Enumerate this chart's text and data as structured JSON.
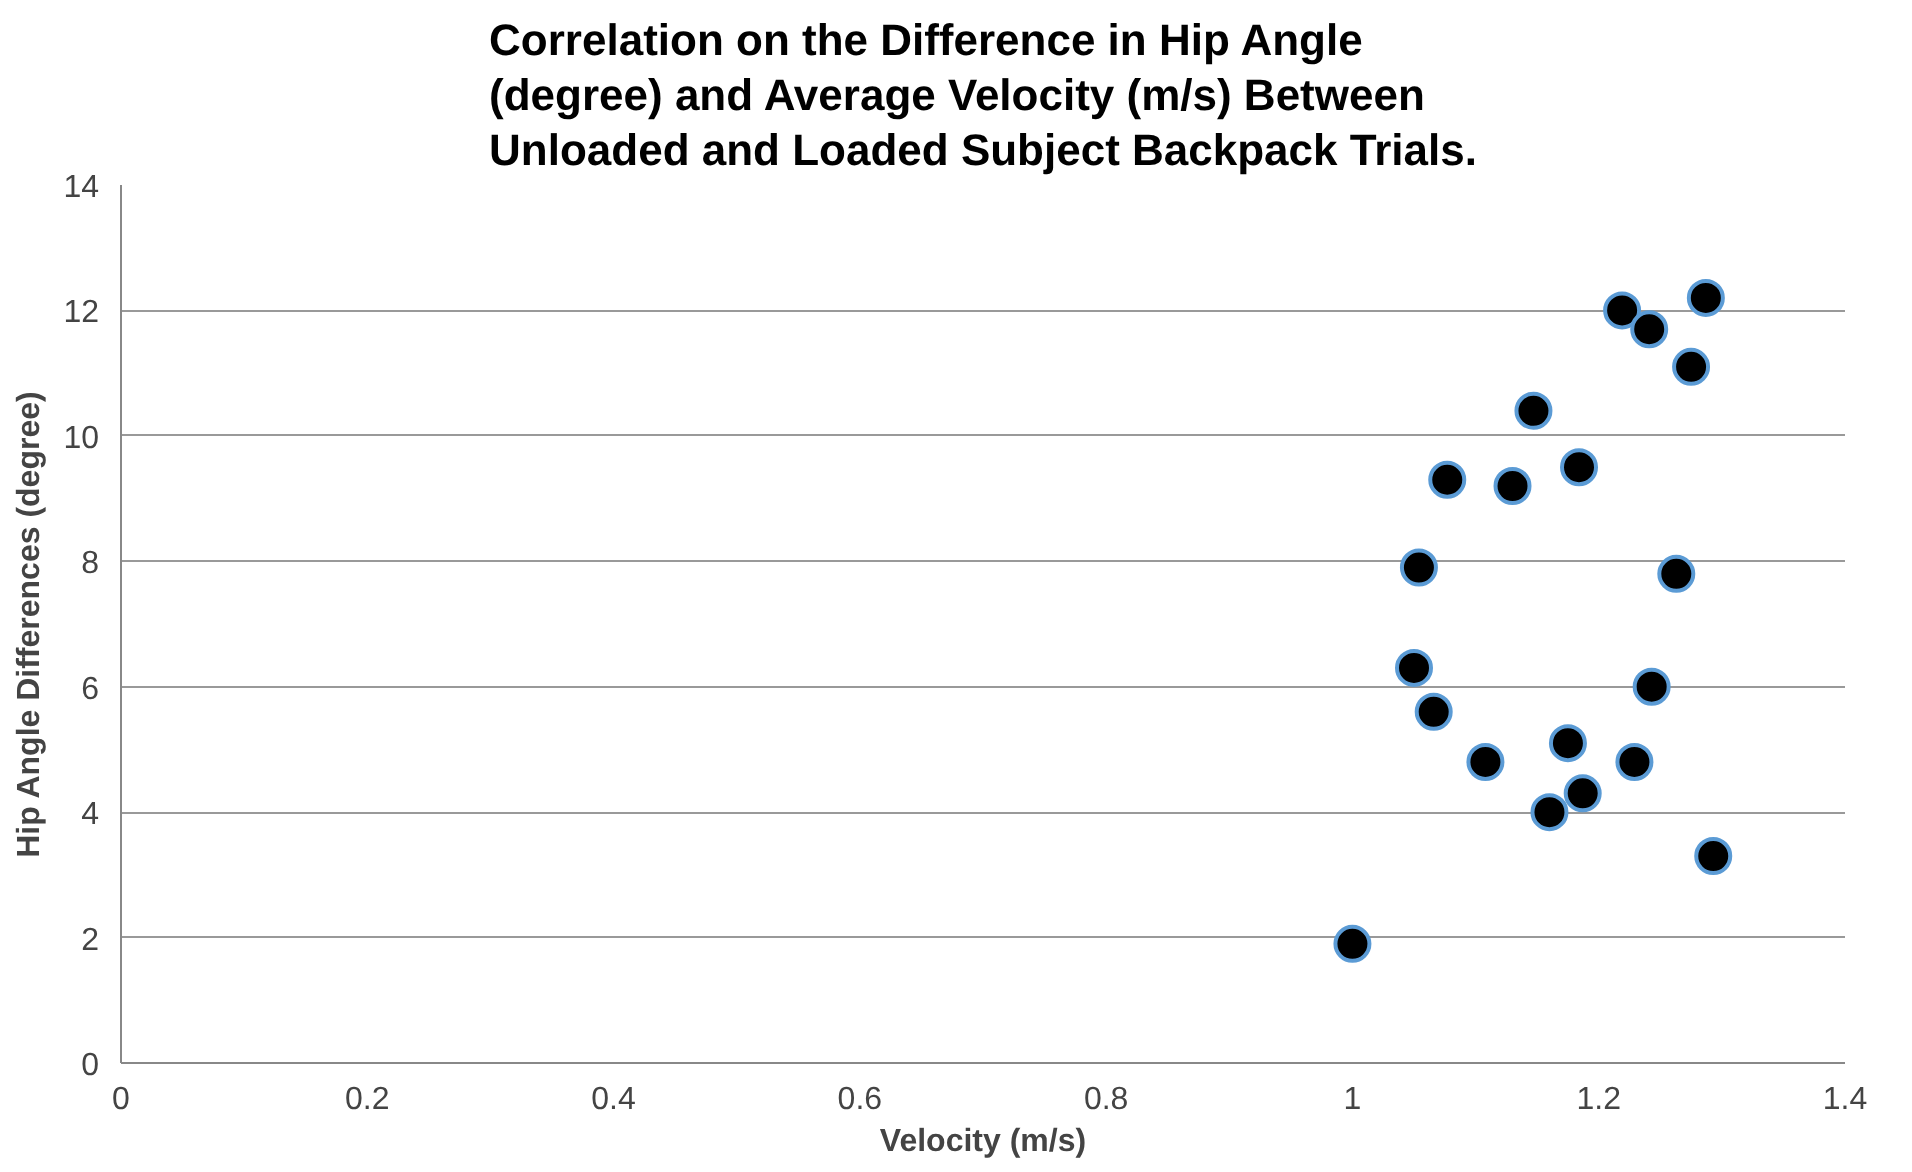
{
  "chart_data": {
    "type": "scatter",
    "title": "Correlation on the Difference in Hip Angle\n(degree) and Average Velocity (m/s) Between\nUnloaded and Loaded Subject Backpack Trials.",
    "xlabel": "Velocity (m/s)",
    "ylabel": "Hip Angle Differences (degree)",
    "x": [
      1.0,
      1.054,
      1.05,
      1.066,
      1.077,
      1.108,
      1.13,
      1.147,
      1.16,
      1.175,
      1.184,
      1.187,
      1.219,
      1.229,
      1.241,
      1.243,
      1.263,
      1.275,
      1.287,
      1.293
    ],
    "series": [
      {
        "color": "#000000",
        "values": [
          1.9,
          7.9,
          6.3,
          5.6,
          9.3,
          4.8,
          9.2,
          10.4,
          4.0,
          5.1,
          9.5,
          4.3,
          12.0,
          4.8,
          11.7,
          6.0,
          7.8,
          11.1,
          12.2,
          3.3
        ]
      }
    ],
    "xlim": [
      0,
      1.4
    ],
    "xticks": [
      0,
      0.2,
      0.4,
      0.6,
      0.8,
      1,
      1.2,
      1.4
    ],
    "ylim": [
      0,
      14
    ],
    "yticks": [
      0,
      2,
      4,
      6,
      8,
      10,
      12,
      14
    ],
    "grid": "y",
    "marker": "circle"
  }
}
